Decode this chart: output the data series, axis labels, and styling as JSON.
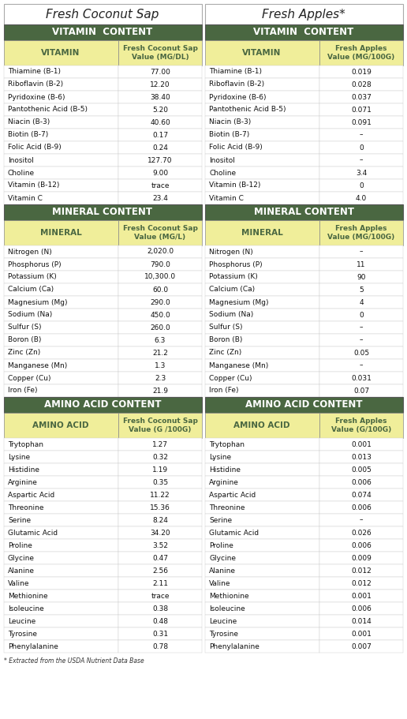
{
  "title_left": "Fresh Coconut Sap",
  "title_right": "Fresh Apples*",
  "footnote": "* Extracted from the USDA Nutrient Data Base",
  "colors": {
    "header_bg": "#4a6741",
    "header_text": "#ffffff",
    "subheader_bg": "#f0ee9a",
    "subheader_text": "#4a6741",
    "row_bg": "#ffffff",
    "border": "#999999",
    "title_bg": "#ffffff"
  },
  "vitamin_section": {
    "label": "VITAMIN  CONTENT",
    "left_col_header": "VITAMIN",
    "left_val_header": "Fresh Coconut Sap\nValue (MG/DL)",
    "right_col_header": "VITAMIN",
    "right_val_header": "Fresh Apples\nValue (MG/100G)",
    "rows": [
      [
        "Thiamine (B-1)",
        "77.00",
        "Thiamine (B-1)",
        "0.019"
      ],
      [
        "Riboflavin (B-2)",
        "12.20",
        "Riboflavin (B-2)",
        "0.028"
      ],
      [
        "Pyridoxine (B-6)",
        "38.40",
        "Pyridoxine (B-6)",
        "0.037"
      ],
      [
        "Pantothenic Acid (B-5)",
        "5.20",
        "Pantothenic Acid B-5)",
        "0.071"
      ],
      [
        "Niacin (B-3)",
        "40.60",
        "Niacin (B-3)",
        "0.091"
      ],
      [
        "Biotin (B-7)",
        "0.17",
        "Biotin (B-7)",
        "–"
      ],
      [
        "Folic Acid (B-9)",
        "0.24",
        "Folic Acid (B-9)",
        "0"
      ],
      [
        "Inositol",
        "127.70",
        "Inositol",
        "–"
      ],
      [
        "Choline",
        "9.00",
        "Choline",
        "3.4"
      ],
      [
        "Vitamin (B-12)",
        "trace",
        "Vitamin (B-12)",
        "0"
      ],
      [
        "Vitamin C",
        "23.4",
        "Vitamin C",
        "4.0"
      ]
    ]
  },
  "mineral_section": {
    "label": "MINERAL CONTENT",
    "left_col_header": "MINERAL",
    "left_val_header": "Fresh Coconut Sap\nValue (MG/L)",
    "right_col_header": "MINERAL",
    "right_val_header": "Fresh Apples\nValue (MG/100G)",
    "rows": [
      [
        "Nitrogen (N)",
        "2,020.0",
        "Nitrogen (N)",
        "–"
      ],
      [
        "Phosphorus (P)",
        "790.0",
        "Phosphorus (P)",
        "11"
      ],
      [
        "Potassium (K)",
        "10,300.0",
        "Potassium (K)",
        "90"
      ],
      [
        "Calcium (Ca)",
        "60.0",
        "Calcium (Ca)",
        "5"
      ],
      [
        "Magnesium (Mg)",
        "290.0",
        "Magnesium (Mg)",
        "4"
      ],
      [
        "Sodium (Na)",
        "450.0",
        "Sodium (Na)",
        "0"
      ],
      [
        "Sulfur (S)",
        "260.0",
        "Sulfur (S)",
        "–"
      ],
      [
        "Boron (B)",
        "6.3",
        "Boron (B)",
        "–"
      ],
      [
        "Zinc (Zn)",
        "21.2",
        "Zinc (Zn)",
        "0.05"
      ],
      [
        "Manganese (Mn)",
        "1.3",
        "Manganese (Mn)",
        "–"
      ],
      [
        "Copper (Cu)",
        "2.3",
        "Copper (Cu)",
        "0.031"
      ],
      [
        "Iron (Fe)",
        "21.9",
        "Iron (Fe)",
        "0.07"
      ]
    ]
  },
  "amino_section": {
    "label": "AMINO ACID CONTENT",
    "left_col_header": "AMINO ACID",
    "left_val_header": "Fresh Coconut Sap\nValue (G /100G)",
    "right_col_header": "AMINO ACID",
    "right_val_header": "Fresh Apples\nValue (G/100G)",
    "rows": [
      [
        "Trytophan",
        "1.27",
        "Trytophan",
        "0.001"
      ],
      [
        "Lysine",
        "0.32",
        "Lysine",
        "0.013"
      ],
      [
        "Histidine",
        "1.19",
        "Histidine",
        "0.005"
      ],
      [
        "Arginine",
        "0.35",
        "Arginine",
        "0.006"
      ],
      [
        "Aspartic Acid",
        "11.22",
        "Aspartic Acid",
        "0.074"
      ],
      [
        "Threonine",
        "15.36",
        "Threonine",
        "0.006"
      ],
      [
        "Serine",
        "8.24",
        "Serine",
        "–"
      ],
      [
        "Glutamic Acid",
        "34.20",
        "Glutamic Acid",
        "0.026"
      ],
      [
        "Proline",
        "3.52",
        "Proline",
        "0.006"
      ],
      [
        "Glycine",
        "0.47",
        "Glycine",
        "0.009"
      ],
      [
        "Alanine",
        "2.56",
        "Alanine",
        "0.012"
      ],
      [
        "Valine",
        "2.11",
        "Valine",
        "0.012"
      ],
      [
        "Methionine",
        "trace",
        "Methionine",
        "0.001"
      ],
      [
        "Isoleucine",
        "0.38",
        "Isoleucine",
        "0.006"
      ],
      [
        "Leucine",
        "0.48",
        "Leucine",
        "0.014"
      ],
      [
        "Tyrosine",
        "0.31",
        "Tyrosine",
        "0.001"
      ],
      [
        "Phenylalanine",
        "0.78",
        "Phenylalanine",
        "0.007"
      ]
    ]
  }
}
